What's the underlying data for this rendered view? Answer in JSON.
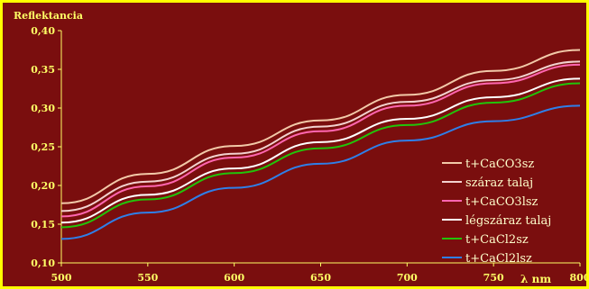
{
  "chart_data": {
    "type": "line",
    "title": "",
    "ylabel": "Reflektancia",
    "xlabel": "λ nm",
    "xlim": [
      500,
      800
    ],
    "ylim": [
      0.1,
      0.4
    ],
    "x_ticks": [
      500,
      550,
      600,
      650,
      700,
      750,
      800
    ],
    "x_tick_labels": [
      "500",
      "550",
      "600",
      "650",
      "700",
      "750",
      "800"
    ],
    "y_ticks": [
      0.1,
      0.15,
      0.2,
      0.25,
      0.3,
      0.35,
      0.4
    ],
    "y_tick_labels": [
      "0,10",
      "0,15",
      "0,20",
      "0,25",
      "0,30",
      "0,35",
      "0,40"
    ],
    "grid": false,
    "legend_position": "right",
    "x": [
      500,
      550,
      600,
      650,
      700,
      750,
      800
    ],
    "series": [
      {
        "name": "t+CaCO3sz",
        "color": "#f2c9a8",
        "values": [
          0.177,
          0.215,
          0.251,
          0.284,
          0.317,
          0.348,
          0.375
        ]
      },
      {
        "name": "száraz talaj",
        "color": "#f2d2cf",
        "values": [
          0.167,
          0.205,
          0.241,
          0.276,
          0.308,
          0.336,
          0.36
        ]
      },
      {
        "name": "t+CaCO3lsz",
        "color": "#ff66b0",
        "values": [
          0.16,
          0.199,
          0.236,
          0.27,
          0.303,
          0.332,
          0.356
        ]
      },
      {
        "name": "légszáraz talaj",
        "color": "#ffffff",
        "values": [
          0.152,
          0.188,
          0.222,
          0.256,
          0.286,
          0.314,
          0.338
        ]
      },
      {
        "name": "t+CaCl2sz",
        "color": "#22c40a",
        "values": [
          0.146,
          0.182,
          0.216,
          0.248,
          0.278,
          0.307,
          0.332
        ]
      },
      {
        "name": "t+CaCl2lsz",
        "color": "#2f7fe8",
        "values": [
          0.131,
          0.165,
          0.197,
          0.228,
          0.258,
          0.283,
          0.303
        ]
      }
    ]
  }
}
